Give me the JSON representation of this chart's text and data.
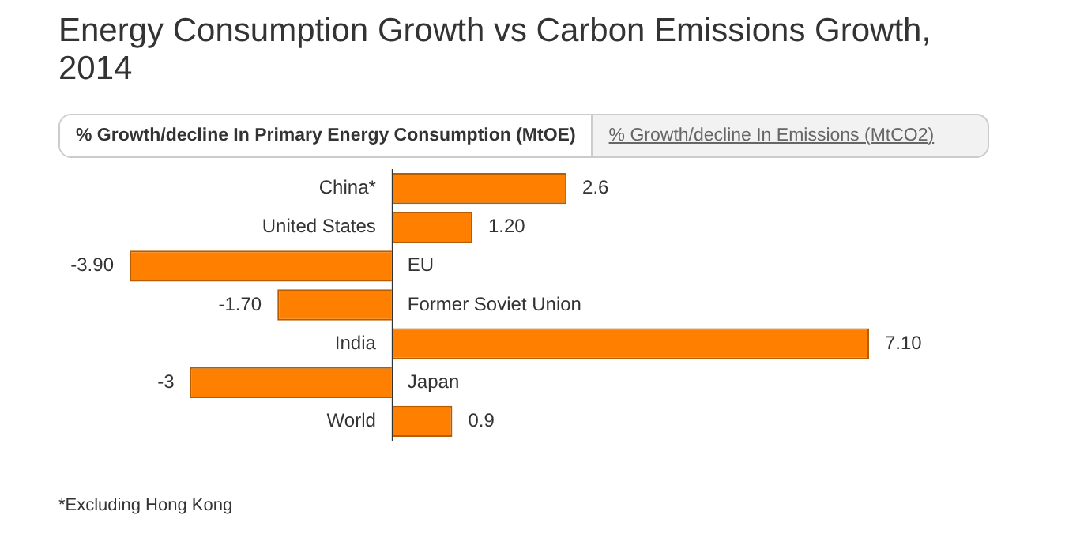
{
  "chart_data": {
    "type": "bar",
    "orientation": "horizontal",
    "title": "Energy Consumption Growth vs Carbon Emissions Growth, 2014",
    "subtitle": "% Growth/decline In Primary Energy Consumption (MtOE)",
    "categories": [
      "China*",
      "United States",
      "EU",
      "Former Soviet Union",
      "India",
      "Japan",
      "World"
    ],
    "values": [
      2.6,
      1.2,
      -3.9,
      -1.7,
      7.1,
      -3,
      0.9
    ],
    "value_labels": [
      "2.6",
      "1.20",
      "-3.90",
      "-1.70",
      "7.10",
      "-3",
      "0.9"
    ],
    "color": "#ff8000",
    "annotations": [
      "% Growth/decline In Emissions (MtCO2)",
      "*Excluding Hong Kong"
    ]
  }
}
